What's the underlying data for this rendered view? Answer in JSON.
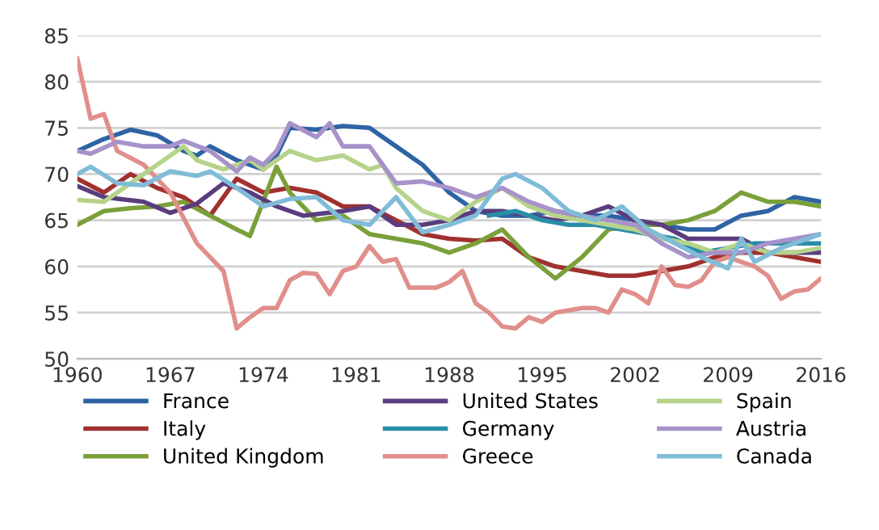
{
  "chart_data": {
    "type": "line",
    "xlim": [
      1960,
      2016
    ],
    "xticks": [
      1960,
      1967,
      1974,
      1981,
      1988,
      1995,
      2002,
      2009,
      2016
    ],
    "ylim": [
      50,
      85
    ],
    "yticks": [
      50,
      55,
      60,
      65,
      70,
      75,
      80,
      85
    ],
    "grid": "y",
    "legend": "bottom",
    "marker": "none",
    "line_style": "solid",
    "series": [
      {
        "name": "France",
        "color": "#2e63a4",
        "x": [
          1960,
          1962,
          1964,
          1966,
          1968,
          1969,
          1970,
          1972,
          1974,
          1975,
          1976,
          1978,
          1980,
          1982,
          1984,
          1986,
          1988,
          1990,
          1992,
          1994,
          1996,
          1998,
          2000,
          2002,
          2004,
          2006,
          2008,
          2010,
          2012,
          2014,
          2016
        ],
        "values": [
          72.5,
          73.8,
          74.8,
          74.2,
          72.5,
          72,
          73,
          71.5,
          70.5,
          72,
          75,
          74.8,
          75.2,
          75,
          73,
          71,
          68,
          66,
          65.5,
          65.5,
          66,
          65.5,
          65.5,
          65,
          64.5,
          64,
          64,
          65.5,
          66,
          67.5,
          67
        ]
      },
      {
        "name": "Italy",
        "color": "#a0312f",
        "x": [
          1960,
          1962,
          1964,
          1966,
          1968,
          1970,
          1972,
          1974,
          1976,
          1978,
          1980,
          1982,
          1984,
          1986,
          1988,
          1990,
          1992,
          1994,
          1996,
          1998,
          2000,
          2002,
          2004,
          2006,
          2008,
          2010,
          2012,
          2014,
          2016
        ],
        "values": [
          69.5,
          68,
          70,
          68.5,
          67.5,
          65.5,
          69.5,
          68,
          68.5,
          68,
          66.5,
          66.5,
          65,
          63.5,
          63,
          62.8,
          63,
          61,
          60,
          59.5,
          59,
          59,
          59.5,
          60,
          61,
          61.5,
          61.5,
          61,
          60.5
        ]
      },
      {
        "name": "United Kingdom",
        "color": "#7aa03a",
        "x": [
          1960,
          1962,
          1964,
          1966,
          1968,
          1970,
          1972,
          1973,
          1975,
          1976,
          1978,
          1980,
          1982,
          1984,
          1986,
          1988,
          1990,
          1992,
          1994,
          1996,
          1998,
          2000,
          2002,
          2004,
          2006,
          2008,
          2010,
          2012,
          2014,
          2016
        ],
        "values": [
          64.5,
          66,
          66.3,
          66.5,
          67,
          65.5,
          64,
          63.3,
          70.8,
          68,
          65,
          65.5,
          63.5,
          63,
          62.5,
          61.5,
          62.5,
          64,
          61,
          58.7,
          61,
          64,
          64.5,
          64.5,
          65,
          66,
          68,
          67,
          67,
          66.5
        ]
      },
      {
        "name": "United States",
        "color": "#5a3d7e",
        "x": [
          1960,
          1962,
          1965,
          1967,
          1969,
          1971,
          1973,
          1975,
          1977,
          1980,
          1982,
          1984,
          1986,
          1988,
          1990,
          1992,
          1994,
          1996,
          1998,
          2000,
          2002,
          2004,
          2006,
          2008,
          2010,
          2012,
          2014,
          2016
        ],
        "values": [
          68.7,
          67.5,
          67,
          65.8,
          66.8,
          69,
          68,
          66.5,
          65.5,
          66,
          66.5,
          64.5,
          64.5,
          65,
          66,
          66,
          65.5,
          65,
          65.5,
          66.5,
          65,
          64.5,
          63,
          63,
          63,
          61.5,
          61.5,
          61.5
        ]
      },
      {
        "name": "Germany",
        "color": "#2a8ea8",
        "x": [
          1991,
          1993,
          1995,
          1997,
          1999,
          2001,
          2003,
          2005,
          2007,
          2009,
          2011,
          2013,
          2015,
          2016
        ],
        "values": [
          65.5,
          66,
          65,
          64.5,
          64.5,
          64,
          63.5,
          63,
          61.5,
          62,
          62.5,
          62.5,
          62.5,
          62.5
        ]
      },
      {
        "name": "Greece",
        "color": "#e08f8c",
        "x": [
          1960,
          1961,
          1962,
          1963,
          1965,
          1966,
          1967,
          1969,
          1971,
          1972,
          1973,
          1974,
          1975,
          1976,
          1977,
          1978,
          1979,
          1980,
          1981,
          1982,
          1983,
          1984,
          1985,
          1987,
          1988,
          1989,
          1990,
          1991,
          1992,
          1993,
          1994,
          1995,
          1996,
          1998,
          1999,
          2000,
          2001,
          2002,
          2003,
          2004,
          2005,
          2006,
          2007,
          2008,
          2009,
          2010,
          2011,
          2012,
          2013,
          2014,
          2015,
          2016
        ],
        "values": [
          82.5,
          76,
          76.5,
          72.5,
          71,
          69.5,
          68,
          62.5,
          59.5,
          53.3,
          54.5,
          55.5,
          55.5,
          58.5,
          59.3,
          59.2,
          57,
          59.5,
          60,
          62.2,
          60.5,
          60.8,
          57.7,
          57.7,
          58.3,
          59.5,
          56,
          55,
          53.5,
          53.3,
          54.5,
          54,
          55,
          55.5,
          55.5,
          55,
          57.5,
          57,
          56,
          60,
          58,
          57.8,
          58.5,
          60.5,
          61,
          60.5,
          60,
          59,
          56.5,
          57.3,
          57.5,
          58.7
        ]
      },
      {
        "name": "Spain",
        "color": "#b5d38a",
        "x": [
          1960,
          1962,
          1964,
          1966,
          1968,
          1969,
          1971,
          1973,
          1974,
          1976,
          1978,
          1980,
          1982,
          1983,
          1984,
          1986,
          1988,
          1990,
          1992,
          1994,
          1996,
          1998,
          2000,
          2002,
          2004,
          2006,
          2008,
          2010,
          2012,
          2014,
          2016
        ],
        "values": [
          67.2,
          67,
          69,
          71,
          73,
          71.5,
          70.5,
          71.5,
          70.5,
          72.5,
          71.5,
          72,
          70.5,
          71,
          68.5,
          66,
          65,
          67,
          68.5,
          66.5,
          65.5,
          65,
          64.5,
          64,
          63,
          62.5,
          61.5,
          62.5,
          61.5,
          61.5,
          62
        ]
      },
      {
        "name": "Austria",
        "color": "#a792c9",
        "x": [
          1960,
          1961,
          1963,
          1965,
          1967,
          1968,
          1970,
          1972,
          1973,
          1974,
          1975,
          1976,
          1978,
          1979,
          1980,
          1982,
          1984,
          1986,
          1988,
          1990,
          1992,
          1994,
          1996,
          1998,
          2000,
          2002,
          2004,
          2006,
          2008,
          2010,
          2012,
          2014,
          2016
        ],
        "values": [
          72.5,
          72.2,
          73.5,
          73,
          73,
          73.6,
          72.5,
          70.3,
          71.8,
          71,
          72.5,
          75.5,
          74,
          75.5,
          73,
          73,
          69,
          69.2,
          68.5,
          67.5,
          68.5,
          67,
          66,
          65.5,
          65,
          64.5,
          62.5,
          61,
          61.5,
          61.5,
          62.5,
          63,
          63.5
        ]
      },
      {
        "name": "Canada",
        "color": "#80bcd8",
        "x": [
          1960,
          1961,
          1963,
          1965,
          1967,
          1969,
          1970,
          1972,
          1974,
          1976,
          1978,
          1980,
          1982,
          1984,
          1986,
          1988,
          1990,
          1992,
          1993,
          1995,
          1997,
          1999,
          2001,
          2003,
          2005,
          2007,
          2009,
          2010,
          2011,
          2013,
          2015,
          2016
        ],
        "values": [
          70,
          70.8,
          69,
          68.8,
          70.3,
          69.8,
          70.3,
          68.5,
          66.5,
          67.3,
          67.5,
          65,
          64.5,
          67.5,
          63.7,
          64.5,
          65.5,
          69.5,
          70,
          68.5,
          66,
          65,
          66.5,
          64,
          62.5,
          61,
          59.8,
          63,
          60.5,
          62,
          63,
          63.5
        ]
      }
    ]
  }
}
